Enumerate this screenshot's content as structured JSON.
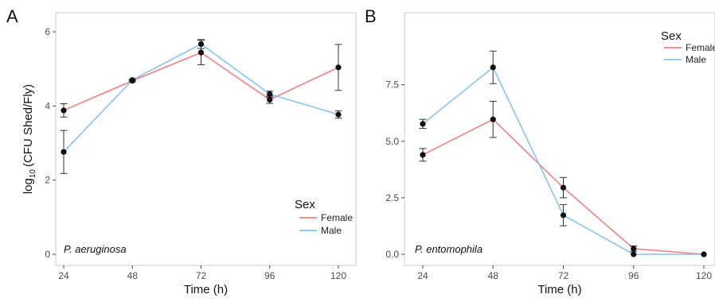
{
  "chart_data": [
    {
      "panel_letter": "A",
      "type": "line",
      "x": [
        24,
        48,
        72,
        96,
        120
      ],
      "xlabel": "Time (h)",
      "ylabel_prefix": "log",
      "ylabel_sub": "10",
      "ylabel_rest": "(CFU Shed/Fly)",
      "xlim": [
        24,
        120
      ],
      "ylim": [
        0,
        6
      ],
      "yticks": [
        0,
        2,
        4,
        6
      ],
      "ytick_labels": [
        "0",
        "2",
        "4",
        "6"
      ],
      "grid": false,
      "legend": {
        "title": "Sex",
        "position": "bottom-right"
      },
      "annotation": "P. aeruginosa",
      "series": [
        {
          "name": "Female",
          "color": "#f08080",
          "values": [
            3.88,
            4.68,
            5.44,
            4.17,
            5.04
          ],
          "err": [
            0.18,
            0.03,
            0.33,
            0.1,
            0.62
          ]
        },
        {
          "name": "Male",
          "color": "#87c4f0",
          "values": [
            2.76,
            4.7,
            5.67,
            4.32,
            3.77
          ],
          "err": [
            0.58,
            0.02,
            0.12,
            0.08,
            0.1
          ]
        }
      ]
    },
    {
      "panel_letter": "B",
      "type": "line",
      "x": [
        24,
        48,
        72,
        96,
        120
      ],
      "xlabel": "Time (h)",
      "xlim": [
        24,
        120
      ],
      "ylim": [
        0,
        9
      ],
      "yticks": [
        0,
        2.5,
        5,
        7.5
      ],
      "ytick_labels": [
        "0.0",
        "2.5",
        "5.0",
        "7.5"
      ],
      "grid": false,
      "legend": {
        "title": "Sex",
        "position": "top-right"
      },
      "annotation": "P. entomophila",
      "series": [
        {
          "name": "Female",
          "color": "#f08080",
          "values": [
            4.4,
            5.97,
            2.95,
            0.25,
            0.0
          ],
          "err": [
            0.28,
            0.8,
            0.45,
            0.12,
            0.0
          ]
        },
        {
          "name": "Male",
          "color": "#87c4f0",
          "values": [
            5.77,
            8.27,
            1.73,
            0.0,
            0.0
          ],
          "err": [
            0.2,
            0.72,
            0.47,
            0.0,
            0.0
          ]
        }
      ]
    }
  ]
}
